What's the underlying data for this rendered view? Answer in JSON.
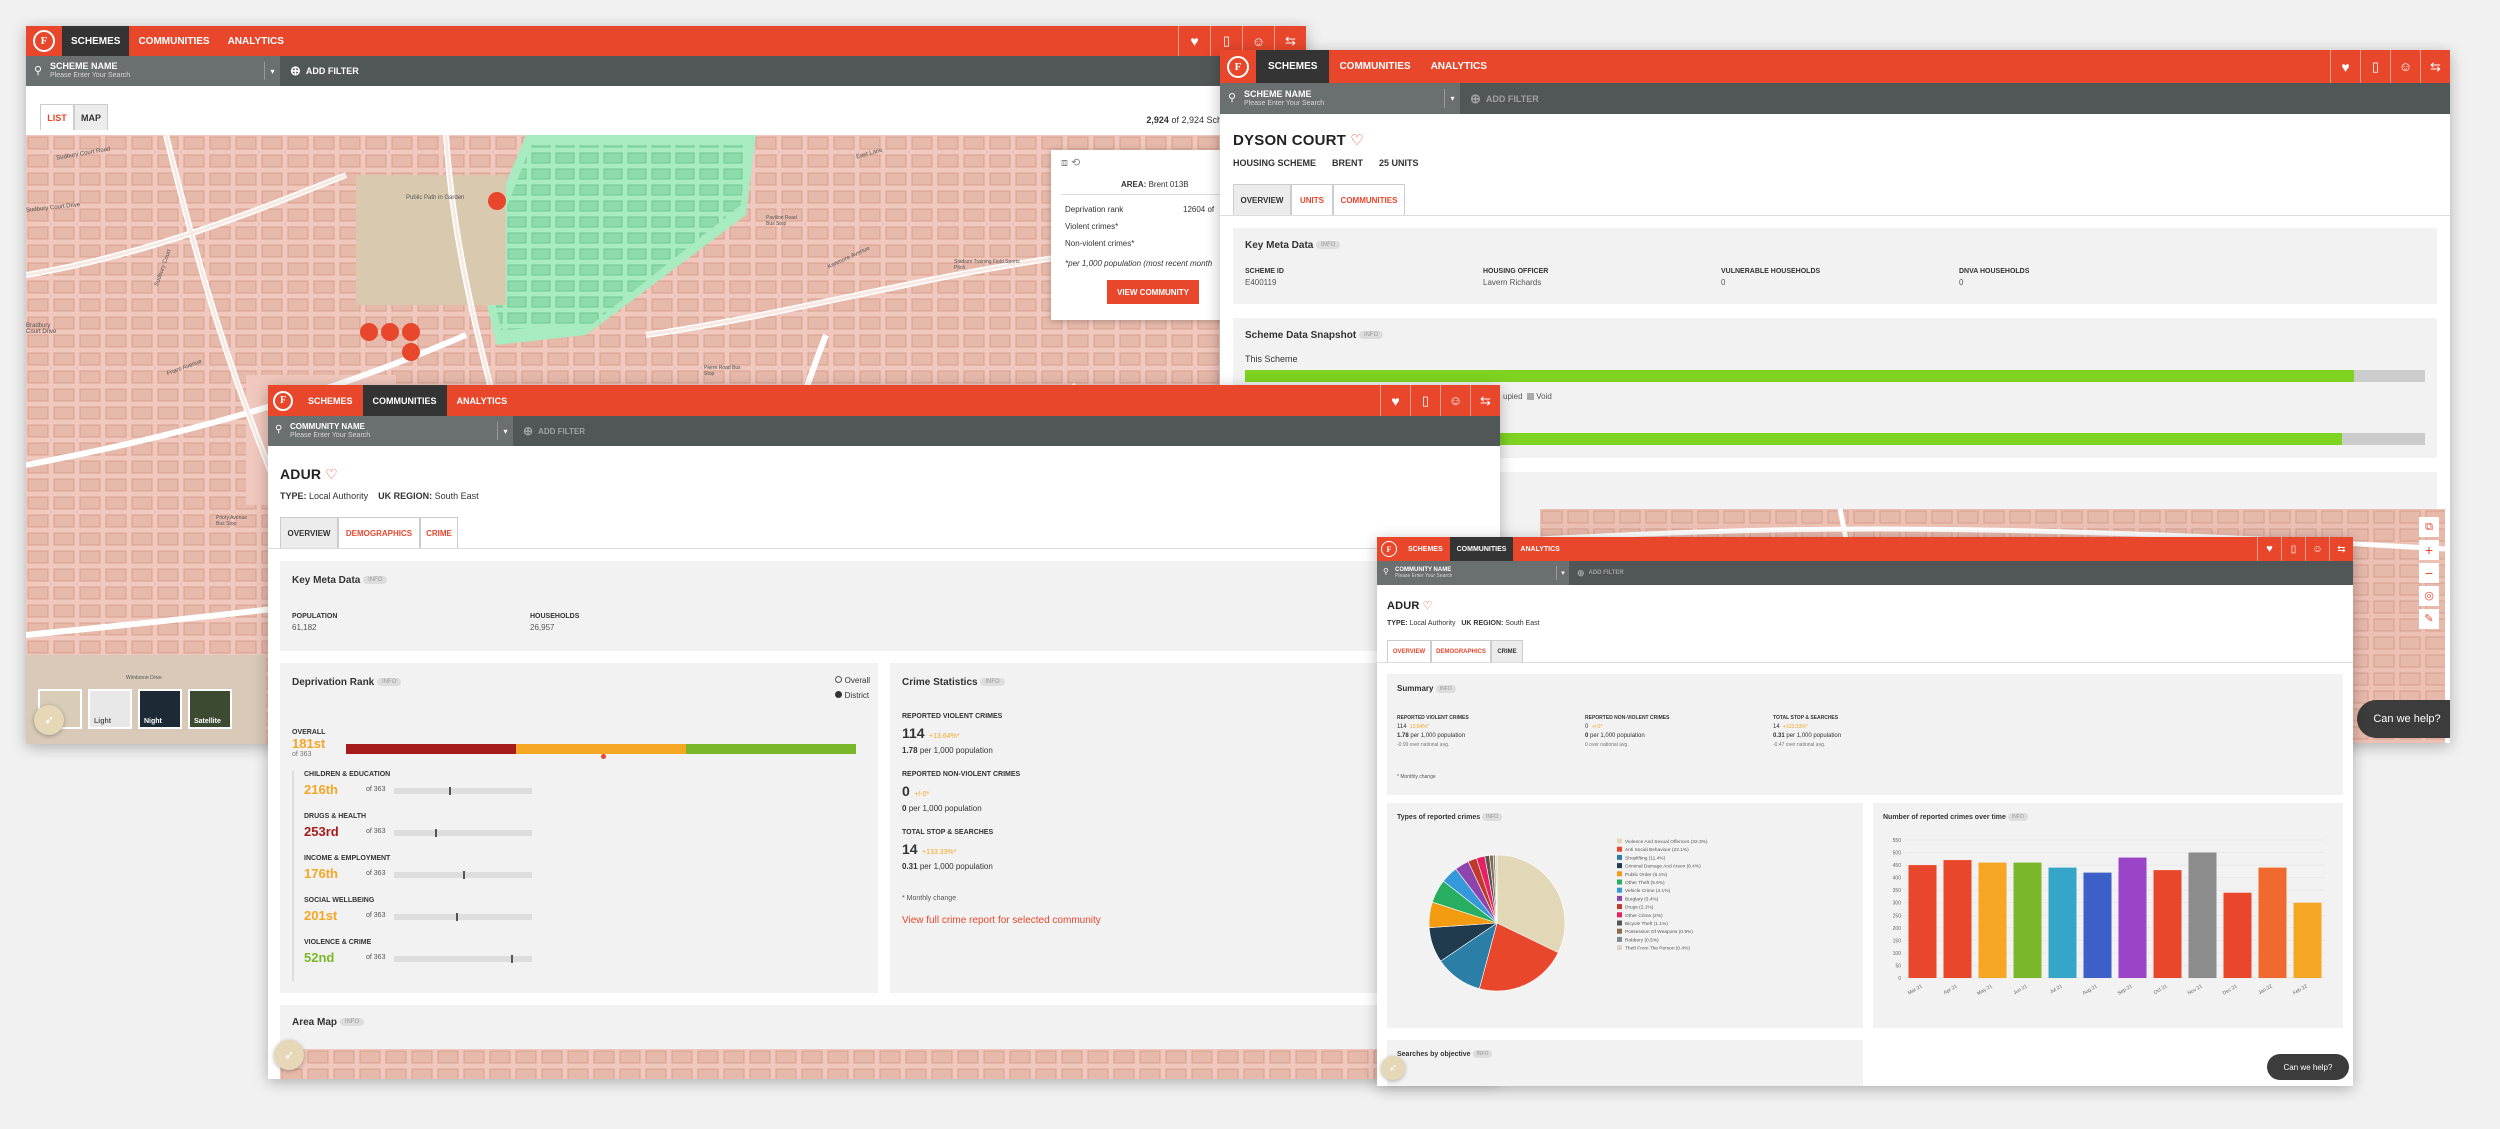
{
  "w1": {
    "nav": {
      "tabs": [
        "SCHEMES",
        "COMMUNITIES",
        "ANALYTICS"
      ],
      "active": 0
    },
    "search": {
      "label": "SCHEME NAME",
      "placeholder": "Please Enter Your Search"
    },
    "add_filter": "ADD FILTER",
    "view_tabs": [
      "LIST",
      "MAP"
    ],
    "count": {
      "shown": "2,924",
      "rest": "of 2,924 Schemes"
    },
    "popup": {
      "area": "AREA:",
      "area_val": "Brent 013B",
      "dep": "Deprivation rank",
      "dep_val": "12604 of",
      "violent": "Violent crimes*",
      "nonviolent": "Non-violent crimes*",
      "note": "*per 1,000 population (most recent month",
      "button": "VIEW COMMUNITY"
    },
    "layers": [
      "",
      "Light",
      "Night",
      "Satellite"
    ],
    "map_labels": [
      "Sudbury Court Road",
      "Public Path in Garden",
      "Bradbury Court Drive",
      "Sudbury Court",
      "Friars Avenue",
      "East Lane",
      "Pavilion Road Bus Stop",
      "Stadium Training Field Sports Pitch",
      "Pierre Road Bus Stop",
      "Kenmore Avenue",
      "Priory Avenue Bus Stop",
      "Wimborne Drive",
      "Sudbury Court Drive"
    ]
  },
  "w2": {
    "nav": {
      "tabs": [
        "SCHEMES",
        "COMMUNITIES",
        "ANALYTICS"
      ],
      "active": 0
    },
    "search": {
      "label": "SCHEME NAME",
      "placeholder": "Please Enter Your Search"
    },
    "add_filter": "ADD FILTER",
    "title": "DYSON COURT",
    "meta": [
      "HOUSING SCHEME",
      "BRENT",
      "25 UNITS"
    ],
    "tabs": [
      "OVERVIEW",
      "UNITS",
      "COMMUNITIES"
    ],
    "key_meta": {
      "title": "Key Meta Data",
      "pill": "INFO",
      "fields": [
        {
          "label": "SCHEME ID",
          "value": "E400119"
        },
        {
          "label": "HOUSING OFFICER",
          "value": "Lavern Richards"
        },
        {
          "label": "VULNERABLE HOUSEHOLDS",
          "value": "0"
        },
        {
          "label": "DNVA HOUSEHOLDS",
          "value": "0"
        }
      ]
    },
    "snapshot": {
      "title": "Scheme Data Snapshot",
      "pill": "INFO",
      "this_scheme": "This Scheme",
      "legend_frag": "upied",
      "void": "Void",
      "bars": [
        0.94,
        0.93
      ]
    }
  },
  "w3": {
    "nav": {
      "tabs": [
        "SCHEMES",
        "COMMUNITIES",
        "ANALYTICS"
      ],
      "active": 1
    },
    "search": {
      "label": "COMMUNITY NAME",
      "placeholder": "Please Enter Your Search"
    },
    "add_filter": "ADD FILTER",
    "title": "ADUR",
    "type_label": "TYPE:",
    "type_val": "Local Authority",
    "region_label": "UK REGION:",
    "region_val": "South East",
    "tabs": [
      "OVERVIEW",
      "DEMOGRAPHICS",
      "CRIME"
    ],
    "key_meta": {
      "title": "Key Meta Data",
      "pill": "INFO",
      "fields": [
        {
          "label": "POPULATION",
          "value": "61,182"
        },
        {
          "label": "HOUSEHOLDS",
          "value": "26,957"
        }
      ]
    },
    "dep": {
      "title": "Deprivation Rank",
      "pill": "INFO",
      "legend": [
        "Overall",
        "District"
      ],
      "overall_label": "OVERALL",
      "overall_rank": "181st",
      "overall_of": "of 363",
      "overall_pos": 0.5,
      "items": [
        {
          "label": "CHILDREN & EDUCATION",
          "rank": "216th",
          "of": "of 363",
          "cls": "orange",
          "pos": 0.4
        },
        {
          "label": "DRUGS & HEALTH",
          "rank": "253rd",
          "of": "of 363",
          "cls": "dred",
          "pos": 0.3
        },
        {
          "label": "INCOME & EMPLOYMENT",
          "rank": "176th",
          "of": "of 363",
          "cls": "orange",
          "pos": 0.5
        },
        {
          "label": "SOCIAL WELLBEING",
          "rank": "201st",
          "of": "of 363",
          "cls": "orange",
          "pos": 0.45
        },
        {
          "label": "VIOLENCE & CRIME",
          "rank": "52nd",
          "of": "of 363",
          "cls": "green",
          "pos": 0.85
        }
      ]
    },
    "crime": {
      "title": "Crime Statistics",
      "pill": "INFO",
      "blocks": [
        {
          "label": "REPORTED VIOLENT CRIMES",
          "value": "114",
          "change": "+13.64%*",
          "per": "1.78",
          "per_txt": "per 1,000 population"
        },
        {
          "label": "REPORTED NON-VIOLENT CRIMES",
          "value": "0",
          "change": "+/-0*",
          "per": "0",
          "per_txt": "per 1,000 population"
        },
        {
          "label": "TOTAL STOP & SEARCHES",
          "value": "14",
          "change": "+133.33%*",
          "per": "0.31",
          "per_txt": "per 1,000 population"
        }
      ],
      "note": "* Monthly change",
      "link": "View full crime report for selected community"
    },
    "area_map": {
      "title": "Area Map",
      "pill": "INFO"
    }
  },
  "w4": {
    "nav": {
      "tabs": [
        "SCHEMES",
        "COMMUNITIES",
        "ANALYTICS"
      ],
      "active": 1
    },
    "search": {
      "label": "COMMUNITY NAME",
      "placeholder": "Please Enter Your Search"
    },
    "add_filter": "ADD FILTER",
    "title": "ADUR",
    "type_label": "TYPE:",
    "type_val": "Local Authority",
    "region_label": "UK REGION:",
    "region_val": "South East",
    "tabs": [
      "OVERVIEW",
      "DEMOGRAPHICS",
      "CRIME"
    ],
    "summary": {
      "title": "Summary",
      "pill": "INFO",
      "blocks": [
        {
          "label": "REPORTED VIOLENT CRIMES",
          "value": "114",
          "change": "13.64%*",
          "per": "1.78",
          "per_txt": "per 1,000 population",
          "avg": "-0.99 over national avg."
        },
        {
          "label": "REPORTED NON-VIOLENT CRIMES",
          "value": "0",
          "change": "+/-0*",
          "per": "0",
          "per_txt": "per 1,000 population",
          "avg": "0 over national avg."
        },
        {
          "label": "TOTAL STOP & SEARCHES",
          "value": "14",
          "change": "+133.33%*",
          "per": "0.31",
          "per_txt": "per 1,000 population",
          "avg": "-0.47 over national avg."
        }
      ],
      "note": "* Monthly change"
    },
    "pie_title": "Types of reported crimes",
    "pie_pill": "INFO",
    "bar_title": "Number of reported crimes over time",
    "bar_pill": "INFO",
    "searches_title": "Searches by objective",
    "searches_pill": "INFO",
    "chat": "Can we help?"
  },
  "chat_w2": "Can we help?",
  "chart_data": [
    {
      "type": "pie",
      "title": "Types of reported crimes",
      "labels": [
        "Violence And Sexual Offences (32.3%)",
        "Anti Social Behaviour (22.1%)",
        "Shoplifting (11.4%)",
        "Criminal Damage And Arson (8.4%)",
        "Public Order (6.1%)",
        "Other Theft (5.6%)",
        "Vehicle Crime (4.1%)",
        "Burglary (3.4%)",
        "Drugs (2.1%)",
        "Other Crime (2%)",
        "Bicycle Theft (1.1%)",
        "Possession Of Weapons (0.9%)",
        "Robbery (0.5%)",
        "Theft From The Person (0.4%)"
      ],
      "values": [
        32.3,
        22.1,
        11.4,
        8.4,
        6.1,
        5.6,
        4.1,
        3.4,
        2.1,
        2,
        1.1,
        0.9,
        0.5,
        0.4
      ],
      "colors": [
        "#e2d7b7",
        "#e8472c",
        "#2b7fa6",
        "#1f3b4d",
        "#f39c12",
        "#27ae60",
        "#3498db",
        "#8e44ad",
        "#c0392b",
        "#e91e63",
        "#555555",
        "#8b6d4a",
        "#7f8c8d",
        "#d9d4c8"
      ]
    },
    {
      "type": "bar",
      "title": "Number of reported crimes over time",
      "categories": [
        "Mar 21",
        "Apr 21",
        "May 21",
        "Jun 21",
        "Jul 21",
        "Aug 21",
        "Sep 21",
        "Oct 21",
        "Nov 21",
        "Dec 21",
        "Jan 22",
        "Feb 22"
      ],
      "values": [
        450,
        470,
        460,
        460,
        440,
        420,
        480,
        430,
        500,
        340,
        440,
        300
      ],
      "colors": [
        "#e8472c",
        "#e8472c",
        "#f5a623",
        "#7ab829",
        "#35a6c8",
        "#3d5fc8",
        "#9b44c8",
        "#e8472c",
        "#8c8c8c",
        "#e8472c",
        "#f06a30",
        "#f5a623"
      ],
      "ylim": [
        0,
        550
      ],
      "yticks": [
        0,
        50,
        100,
        150,
        200,
        250,
        300,
        350,
        400,
        450,
        500,
        550
      ]
    }
  ]
}
